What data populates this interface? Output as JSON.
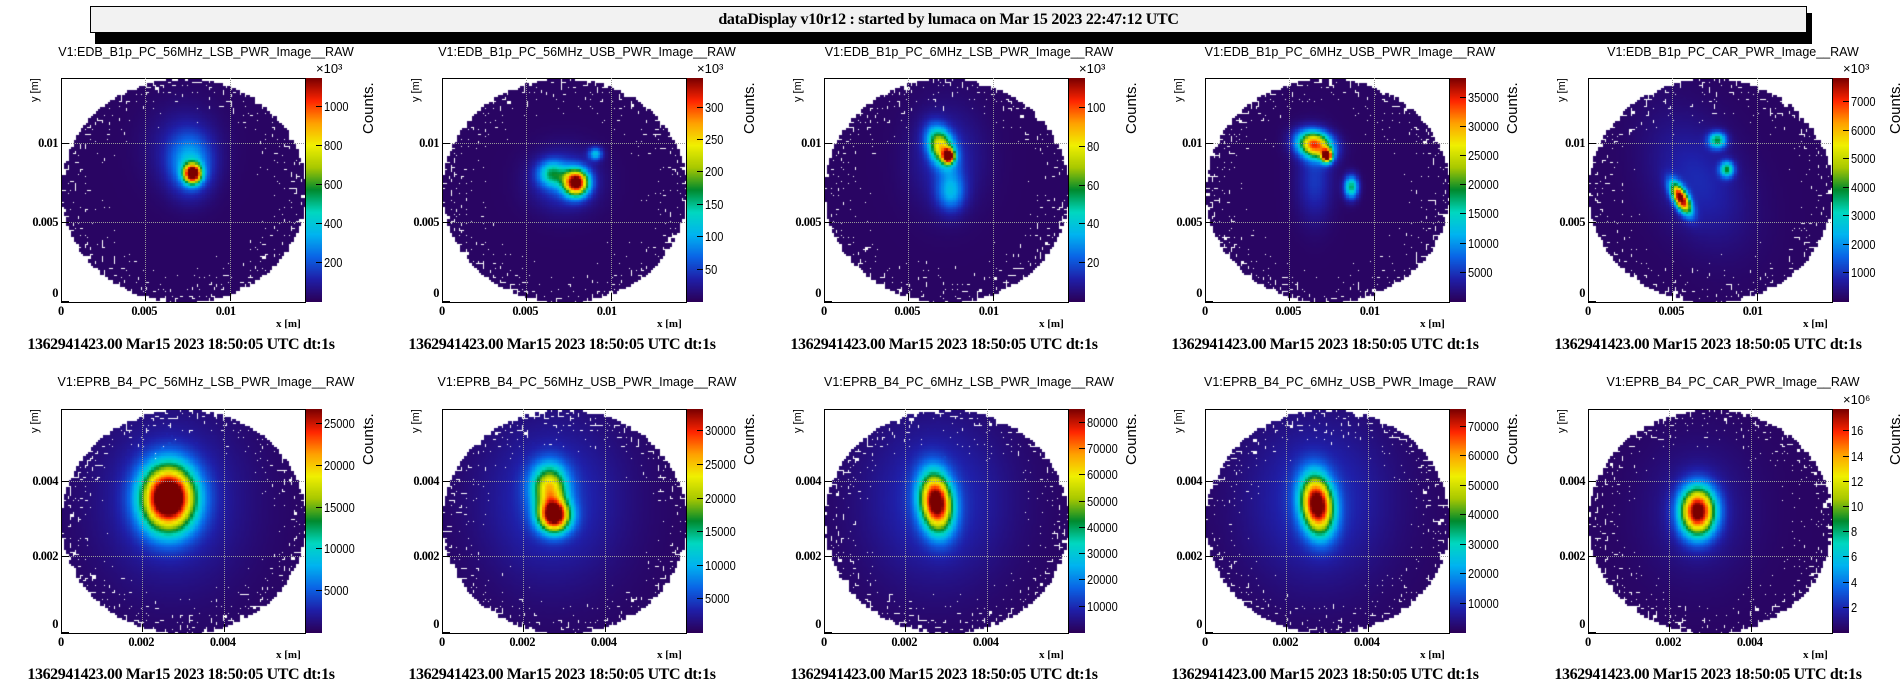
{
  "header": {
    "title": "dataDisplay v10r12 : started by lumaca on Mar 15 2023 22:47:12 UTC"
  },
  "colorscale": [
    "#2b0057",
    "#1f1fa8",
    "#0a64e6",
    "#00b4f0",
    "#00d8c0",
    "#008a2e",
    "#a8c800",
    "#f0f000",
    "#ffa000",
    "#ff2400",
    "#7a0000"
  ],
  "chart_data": [
    {
      "type": "heatmap",
      "title": "V1:EDB_B1p_PC_56MHz_LSB_PWR_Image__RAW",
      "timestamp": "1362941423.00 Mar15 2023 18:50:05 UTC dt:1s",
      "xlabel": "x [m]",
      "ylabel": "y [m]",
      "zlabel": "Counts.",
      "z_exponent": "×10³",
      "xlim": [
        0,
        0.0144
      ],
      "ylim": [
        0,
        0.0141
      ],
      "zlim": [
        0,
        1143
      ],
      "x_ticks": [
        "0",
        "0.005",
        "0.01"
      ],
      "y_ticks": [
        "0",
        "0.005",
        "0.01"
      ],
      "z_ticks": [
        200,
        400,
        600,
        800,
        1000
      ],
      "peak": {
        "x": 0.0078,
        "y": 0.0081
      }
    },
    {
      "type": "heatmap",
      "title": "V1:EDB_B1p_PC_56MHz_USB_PWR_Image__RAW",
      "timestamp": "1362941423.00 Mar15 2023 18:50:05 UTC dt:1s",
      "xlabel": "x [m]",
      "ylabel": "y [m]",
      "zlabel": "Counts.",
      "z_exponent": "×10³",
      "xlim": [
        0,
        0.0144
      ],
      "ylim": [
        0,
        0.0141
      ],
      "zlim": [
        0,
        344
      ],
      "x_ticks": [
        "0",
        "0.005",
        "0.01"
      ],
      "y_ticks": [
        "0",
        "0.005",
        "0.01"
      ],
      "z_ticks": [
        50,
        100,
        150,
        200,
        250,
        300
      ],
      "peak": {
        "x": 0.0078,
        "y": 0.0076
      }
    },
    {
      "type": "heatmap",
      "title": "V1:EDB_B1p_PC_6MHz_LSB_PWR_Image__RAW",
      "timestamp": "1362941423.00 Mar15 2023 18:50:05 UTC dt:1s",
      "xlabel": "x [m]",
      "ylabel": "y [m]",
      "zlabel": "Counts.",
      "z_exponent": "×10³",
      "xlim": [
        0,
        0.0144
      ],
      "ylim": [
        0,
        0.0141
      ],
      "zlim": [
        0,
        115
      ],
      "x_ticks": [
        "0",
        "0.005",
        "0.01"
      ],
      "y_ticks": [
        "0",
        "0.005",
        "0.01"
      ],
      "z_ticks": [
        20,
        40,
        60,
        80,
        100
      ],
      "peak": {
        "x": 0.0073,
        "y": 0.0093
      }
    },
    {
      "type": "heatmap",
      "title": "V1:EDB_B1p_PC_6MHz_USB_PWR_Image__RAW",
      "timestamp": "1362941423.00 Mar15 2023 18:50:05 UTC dt:1s",
      "xlabel": "x [m]",
      "ylabel": "y [m]",
      "zlabel": "Counts.",
      "z_exponent": "",
      "xlim": [
        0,
        0.0144
      ],
      "ylim": [
        0,
        0.0141
      ],
      "zlim": [
        0,
        38200
      ],
      "x_ticks": [
        "0",
        "0.005",
        "0.01"
      ],
      "y_ticks": [
        "0",
        "0.005",
        "0.01"
      ],
      "z_ticks": [
        5000,
        10000,
        15000,
        20000,
        25000,
        30000,
        35000
      ],
      "peak": {
        "x": 0.0072,
        "y": 0.0092
      }
    },
    {
      "type": "heatmap",
      "title": "V1:EDB_B1p_PC_CAR_PWR_Image__RAW",
      "timestamp": "1362941423.00 Mar15 2023 18:50:05 UTC dt:1s",
      "xlabel": "x [m]",
      "ylabel": "y [m]",
      "zlabel": "Counts.",
      "z_exponent": "×10³",
      "xlim": [
        0,
        0.0144
      ],
      "ylim": [
        0,
        0.0141
      ],
      "zlim": [
        0,
        7820
      ],
      "x_ticks": [
        "0",
        "0.005",
        "0.01"
      ],
      "y_ticks": [
        "0",
        "0.005",
        "0.01"
      ],
      "z_ticks": [
        1000,
        2000,
        3000,
        4000,
        5000,
        6000,
        7000
      ],
      "peak": {
        "x": 0.0056,
        "y": 0.0067
      }
    },
    {
      "type": "heatmap",
      "title": "V1:EPRB_B4_PC_56MHz_LSB_PWR_Image__RAW",
      "timestamp": "1362941423.00 Mar15 2023 18:50:05 UTC dt:1s",
      "xlabel": "x [m]",
      "ylabel": "y [m]",
      "zlabel": "Counts.",
      "z_exponent": "",
      "xlim": [
        0,
        0.00597
      ],
      "ylim": [
        0,
        0.0059
      ],
      "zlim": [
        0,
        26700
      ],
      "x_ticks": [
        "0",
        "0.002",
        "0.004"
      ],
      "y_ticks": [
        "0",
        "0.002",
        "0.004"
      ],
      "z_ticks": [
        5000,
        10000,
        15000,
        20000,
        25000
      ],
      "peak": {
        "x": 0.0026,
        "y": 0.0038
      }
    },
    {
      "type": "heatmap",
      "title": "V1:EPRB_B4_PC_56MHz_USB_PWR_Image__RAW",
      "timestamp": "1362941423.00 Mar15 2023 18:50:05 UTC dt:1s",
      "xlabel": "x [m]",
      "ylabel": "y [m]",
      "zlabel": "Counts.",
      "z_exponent": "",
      "xlim": [
        0,
        0.00597
      ],
      "ylim": [
        0,
        0.0059
      ],
      "zlim": [
        0,
        33200
      ],
      "x_ticks": [
        "0",
        "0.002",
        "0.004"
      ],
      "y_ticks": [
        "0",
        "0.002",
        "0.004"
      ],
      "z_ticks": [
        5000,
        10000,
        15000,
        20000,
        25000,
        30000
      ],
      "peak": {
        "x": 0.0028,
        "y": 0.0033
      }
    },
    {
      "type": "heatmap",
      "title": "V1:EPRB_B4_PC_6MHz_LSB_PWR_Image__RAW",
      "timestamp": "1362941423.00 Mar15 2023 18:50:05 UTC dt:1s",
      "xlabel": "x [m]",
      "ylabel": "y [m]",
      "zlabel": "Counts.",
      "z_exponent": "",
      "xlim": [
        0,
        0.00597
      ],
      "ylim": [
        0,
        0.0059
      ],
      "zlim": [
        0,
        84800
      ],
      "x_ticks": [
        "0",
        "0.002",
        "0.004"
      ],
      "y_ticks": [
        "0",
        "0.002",
        "0.004"
      ],
      "z_ticks": [
        10000,
        20000,
        30000,
        40000,
        50000,
        60000,
        70000,
        80000
      ],
      "peak": {
        "x": 0.0027,
        "y": 0.0035
      }
    },
    {
      "type": "heatmap",
      "title": "V1:EPRB_B4_PC_6MHz_USB_PWR_Image__RAW",
      "timestamp": "1362941423.00 Mar15 2023 18:50:05 UTC dt:1s",
      "xlabel": "x [m]",
      "ylabel": "y [m]",
      "zlabel": "Counts.",
      "z_exponent": "",
      "xlim": [
        0,
        0.00597
      ],
      "ylim": [
        0,
        0.0059
      ],
      "zlim": [
        0,
        75600
      ],
      "x_ticks": [
        "0",
        "0.002",
        "0.004"
      ],
      "y_ticks": [
        "0",
        "0.002",
        "0.004"
      ],
      "z_ticks": [
        10000,
        20000,
        30000,
        40000,
        50000,
        60000,
        70000
      ],
      "peak": {
        "x": 0.0027,
        "y": 0.0034
      }
    },
    {
      "type": "heatmap",
      "title": "V1:EPRB_B4_PC_CAR_PWR_Image__RAW",
      "timestamp": "1362941423.00 Mar15 2023 18:50:05 UTC dt:1s",
      "xlabel": "x [m]",
      "ylabel": "y [m]",
      "zlabel": "Counts.",
      "z_exponent": "×10⁶",
      "xlim": [
        0,
        0.00597
      ],
      "ylim": [
        0,
        0.0059
      ],
      "zlim": [
        0,
        17.7
      ],
      "x_ticks": [
        "0",
        "0.002",
        "0.004"
      ],
      "y_ticks": [
        "0",
        "0.002",
        "0.004"
      ],
      "z_ticks": [
        2,
        4,
        6,
        8,
        10,
        12,
        14,
        16
      ],
      "peak": {
        "x": 0.0027,
        "y": 0.0033
      }
    }
  ]
}
